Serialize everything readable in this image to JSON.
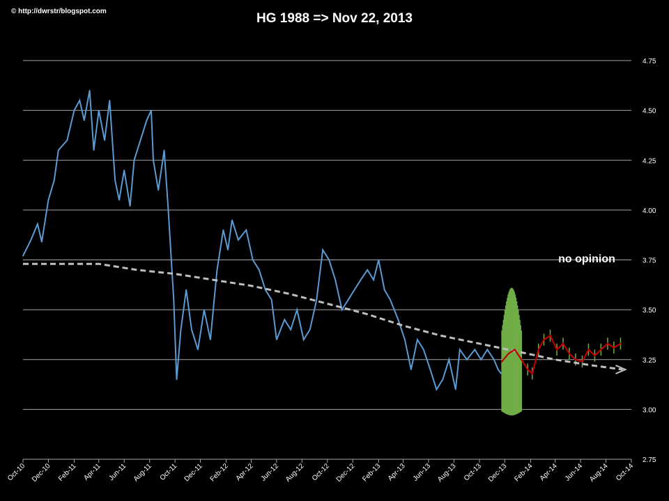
{
  "credit": "© http://dwrstr/blogspot.com",
  "title": "HG 1988 => Nov 22, 2013",
  "colors": {
    "background": "#000000",
    "grid": "#a6a6a6",
    "history": "#5b9bd5",
    "trend": "#bfbfbf",
    "forecast": "#c00000",
    "error_bars": "#70ad47"
  },
  "chart_data": {
    "type": "line",
    "title": "HG 1988 => Nov 22, 2013",
    "ylim": [
      2.75,
      4.75
    ],
    "yticks": [
      "2.75",
      "3.00",
      "3.25",
      "3.50",
      "3.75",
      "4.00",
      "4.25",
      "4.50",
      "4.75"
    ],
    "xticks": [
      "Oct-10",
      "Dec-10",
      "Feb-11",
      "Apr-11",
      "Jun-11",
      "Aug-11",
      "Oct-11",
      "Dec-11",
      "Feb-12",
      "Apr-12",
      "Jun-12",
      "Aug-12",
      "Oct-12",
      "Dec-12",
      "Feb-13",
      "Apr-13",
      "Jun-13",
      "Aug-13",
      "Oct-13",
      "Dec-13",
      "Feb-14",
      "Apr-14",
      "Jun-14",
      "Aug-14",
      "Oct-14"
    ],
    "grid": "horizontal",
    "annotation": "no opinion",
    "series": [
      {
        "role": "history",
        "points": [
          [
            "2010-10-01",
            3.77
          ],
          [
            "2010-10-20",
            3.85
          ],
          [
            "2010-11-05",
            3.93
          ],
          [
            "2010-11-15",
            3.84
          ],
          [
            "2010-12-01",
            4.05
          ],
          [
            "2010-12-15",
            4.15
          ],
          [
            "2010-12-25",
            4.3
          ],
          [
            "2011-01-15",
            4.35
          ],
          [
            "2011-02-01",
            4.5
          ],
          [
            "2011-02-14",
            4.55
          ],
          [
            "2011-02-25",
            4.45
          ],
          [
            "2011-03-10",
            4.6
          ],
          [
            "2011-03-20",
            4.3
          ],
          [
            "2011-04-01",
            4.5
          ],
          [
            "2011-04-15",
            4.35
          ],
          [
            "2011-04-27",
            4.55
          ],
          [
            "2011-05-10",
            4.15
          ],
          [
            "2011-05-20",
            4.05
          ],
          [
            "2011-06-01",
            4.2
          ],
          [
            "2011-06-15",
            4.02
          ],
          [
            "2011-06-25",
            4.25
          ],
          [
            "2011-07-10",
            4.35
          ],
          [
            "2011-07-25",
            4.45
          ],
          [
            "2011-08-05",
            4.5
          ],
          [
            "2011-08-10",
            4.25
          ],
          [
            "2011-08-22",
            4.1
          ],
          [
            "2011-09-05",
            4.3
          ],
          [
            "2011-09-15",
            4.0
          ],
          [
            "2011-09-28",
            3.55
          ],
          [
            "2011-10-05",
            3.15
          ],
          [
            "2011-10-15",
            3.4
          ],
          [
            "2011-10-28",
            3.6
          ],
          [
            "2011-11-10",
            3.4
          ],
          [
            "2011-11-25",
            3.3
          ],
          [
            "2011-12-10",
            3.5
          ],
          [
            "2011-12-25",
            3.35
          ],
          [
            "2012-01-10",
            3.7
          ],
          [
            "2012-01-25",
            3.9
          ],
          [
            "2012-02-05",
            3.8
          ],
          [
            "2012-02-15",
            3.95
          ],
          [
            "2012-03-01",
            3.85
          ],
          [
            "2012-03-20",
            3.9
          ],
          [
            "2012-04-05",
            3.75
          ],
          [
            "2012-04-20",
            3.7
          ],
          [
            "2012-05-05",
            3.6
          ],
          [
            "2012-05-20",
            3.55
          ],
          [
            "2012-06-01",
            3.35
          ],
          [
            "2012-06-20",
            3.45
          ],
          [
            "2012-07-05",
            3.4
          ],
          [
            "2012-07-20",
            3.5
          ],
          [
            "2012-08-05",
            3.35
          ],
          [
            "2012-08-20",
            3.4
          ],
          [
            "2012-09-05",
            3.55
          ],
          [
            "2012-09-20",
            3.8
          ],
          [
            "2012-10-05",
            3.75
          ],
          [
            "2012-10-20",
            3.65
          ],
          [
            "2012-11-05",
            3.5
          ],
          [
            "2012-11-20",
            3.55
          ],
          [
            "2012-12-05",
            3.6
          ],
          [
            "2012-12-20",
            3.65
          ],
          [
            "2013-01-05",
            3.7
          ],
          [
            "2013-01-20",
            3.65
          ],
          [
            "2013-02-01",
            3.75
          ],
          [
            "2013-02-15",
            3.6
          ],
          [
            "2013-03-01",
            3.55
          ],
          [
            "2013-03-20",
            3.45
          ],
          [
            "2013-04-05",
            3.35
          ],
          [
            "2013-04-20",
            3.2
          ],
          [
            "2013-05-05",
            3.35
          ],
          [
            "2013-05-20",
            3.3
          ],
          [
            "2013-06-05",
            3.2
          ],
          [
            "2013-06-20",
            3.1
          ],
          [
            "2013-07-05",
            3.15
          ],
          [
            "2013-07-20",
            3.25
          ],
          [
            "2013-08-05",
            3.1
          ],
          [
            "2013-08-15",
            3.3
          ],
          [
            "2013-09-01",
            3.25
          ],
          [
            "2013-09-20",
            3.3
          ],
          [
            "2013-10-05",
            3.25
          ],
          [
            "2013-10-20",
            3.3
          ],
          [
            "2013-11-05",
            3.25
          ],
          [
            "2013-11-15",
            3.2
          ],
          [
            "2013-11-22",
            3.18
          ]
        ]
      },
      {
        "role": "trend",
        "points": [
          [
            "2010-10-01",
            3.73
          ],
          [
            "2011-01-01",
            3.73
          ],
          [
            "2011-04-01",
            3.73
          ],
          [
            "2011-07-01",
            3.7
          ],
          [
            "2011-10-01",
            3.68
          ],
          [
            "2012-01-01",
            3.65
          ],
          [
            "2012-04-01",
            3.62
          ],
          [
            "2012-07-01",
            3.58
          ],
          [
            "2012-10-01",
            3.53
          ],
          [
            "2013-01-01",
            3.48
          ],
          [
            "2013-04-01",
            3.42
          ],
          [
            "2013-07-01",
            3.37
          ],
          [
            "2013-10-01",
            3.33
          ],
          [
            "2014-01-01",
            3.29
          ],
          [
            "2014-04-01",
            3.25
          ],
          [
            "2014-07-01",
            3.22
          ],
          [
            "2014-09-10",
            3.2
          ]
        ]
      },
      {
        "role": "forecast",
        "points": [
          [
            "2013-11-24",
            3.24
          ],
          [
            "2013-12-10",
            3.28
          ],
          [
            "2013-12-25",
            3.3
          ],
          [
            "2014-01-10",
            3.25
          ],
          [
            "2014-01-25",
            3.2
          ],
          [
            "2014-02-05",
            3.18
          ],
          [
            "2014-02-20",
            3.3
          ],
          [
            "2014-03-05",
            3.35
          ],
          [
            "2014-03-20",
            3.37
          ],
          [
            "2014-04-05",
            3.3
          ],
          [
            "2014-04-20",
            3.33
          ],
          [
            "2014-05-05",
            3.28
          ],
          [
            "2014-05-20",
            3.25
          ],
          [
            "2014-06-05",
            3.24
          ],
          [
            "2014-06-20",
            3.3
          ],
          [
            "2014-07-05",
            3.27
          ],
          [
            "2014-07-20",
            3.3
          ],
          [
            "2014-08-05",
            3.33
          ],
          [
            "2014-08-20",
            3.31
          ],
          [
            "2014-09-05",
            3.33
          ]
        ],
        "error_band": {
          "wide_from": "2013-11-24",
          "wide_to": "2014-01-10",
          "wide_range": [
            2.97,
            3.61
          ],
          "narrow_error": 0.03
        }
      }
    ]
  }
}
